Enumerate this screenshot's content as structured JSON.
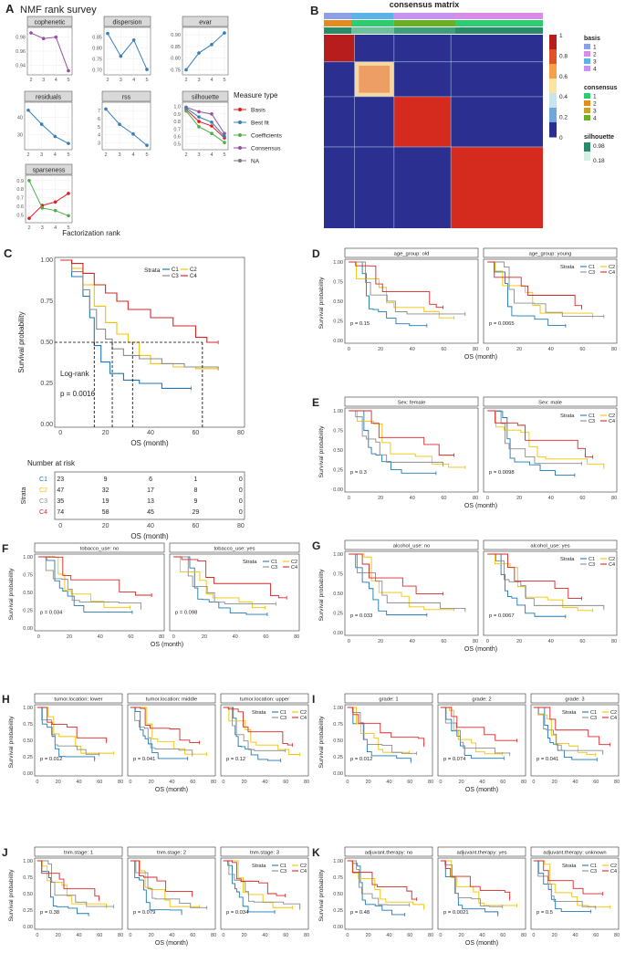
{
  "colors": {
    "C1": "#1f78b4",
    "C2": "#f2c200",
    "C3": "#8c8c8c",
    "C4": "#d62728",
    "basis": "#e41a1c",
    "bestfit": "#377eb8",
    "coefficients": "#4daf4a",
    "consensus": "#984ea3",
    "na": "#777777"
  },
  "panelA": {
    "letter": "A",
    "title": "NMF rank survey",
    "xlabel": "Factorization rank",
    "ranks": [
      "2",
      "3",
      "4",
      "5"
    ],
    "facets": [
      {
        "name": "cophenetic",
        "yticks": [
          "0.98",
          "0.96",
          "0.94"
        ],
        "ylim": [
          0.93,
          0.99
        ],
        "lines": [
          {
            "measure": "consensus",
            "values": [
              0.986,
              0.978,
              0.98,
              0.932
            ]
          }
        ]
      },
      {
        "name": "dispersion",
        "yticks": [
          "0.85",
          "0.80",
          "0.75",
          "0.70"
        ],
        "ylim": [
          0.69,
          0.88
        ],
        "lines": [
          {
            "measure": "bestfit",
            "values": [
              0.865,
              0.762,
              0.835,
              0.702
            ]
          }
        ]
      },
      {
        "name": "evar",
        "yticks": [
          "0.90",
          "0.85",
          "0.80",
          "0.75"
        ],
        "ylim": [
          0.74,
          0.92
        ],
        "lines": [
          {
            "measure": "bestfit",
            "values": [
              0.75,
              0.822,
              0.858,
              0.908
            ]
          }
        ]
      },
      {
        "name": "residuals",
        "yticks": [
          "40",
          "30"
        ],
        "ylim": [
          23,
          47
        ],
        "lines": [
          {
            "measure": "bestfit",
            "values": [
              44,
              36,
              29,
              25
            ]
          }
        ]
      },
      {
        "name": "rss",
        "yticks": [
          "7",
          "6",
          "5",
          "4",
          "3"
        ],
        "ylim": [
          2.5,
          7.7
        ],
        "lines": [
          {
            "measure": "bestfit",
            "values": [
              7.2,
              5.3,
              4.1,
              2.7
            ]
          }
        ]
      },
      {
        "name": "silhouette",
        "yticks": [
          "1.0",
          "0.9",
          "0.8",
          "0.7",
          "0.6",
          "0.5"
        ],
        "ylim": [
          0.46,
          1.02
        ],
        "lines": [
          {
            "measure": "consensus",
            "values": [
              0.99,
              0.93,
              0.9,
              0.64
            ]
          },
          {
            "measure": "basis",
            "values": [
              0.96,
              0.8,
              0.74,
              0.58
            ]
          },
          {
            "measure": "coefficients",
            "values": [
              0.94,
              0.73,
              0.64,
              0.52
            ]
          },
          {
            "measure": "bestfit",
            "values": [
              0.98,
              0.86,
              0.79,
              0.6
            ]
          }
        ]
      },
      {
        "name": "sparseness",
        "yticks": [
          "0.9",
          "0.8",
          "0.7",
          "0.6",
          "0.5"
        ],
        "ylim": [
          0.44,
          0.93
        ],
        "lines": [
          {
            "measure": "basis",
            "values": [
              0.46,
              0.61,
              0.65,
              0.75
            ]
          },
          {
            "measure": "coefficients",
            "values": [
              0.9,
              0.58,
              0.55,
              0.49
            ]
          }
        ]
      }
    ],
    "legend": {
      "title": "Measure type",
      "items": [
        {
          "label": "Basis",
          "measure": "basis"
        },
        {
          "label": "Best fit",
          "measure": "bestfit"
        },
        {
          "label": "Coefficients",
          "measure": "coefficients"
        },
        {
          "label": "Consensus",
          "measure": "consensus"
        },
        {
          "label": "NA",
          "measure": "na"
        }
      ]
    }
  },
  "panelB": {
    "letter": "B",
    "title": "consensus matrix",
    "colorbar_ticks": [
      "1",
      "0.8",
      "0.6",
      "0.4",
      "0.2",
      "0"
    ],
    "basis": {
      "title": "basis",
      "items": [
        {
          "label": "1",
          "color": "#8da0e6"
        },
        {
          "label": "2",
          "color": "#d98ee6"
        },
        {
          "label": "3",
          "color": "#5ab4e6"
        },
        {
          "label": "4",
          "color": "#c792f0"
        }
      ]
    },
    "consensus": {
      "title": "consensus",
      "items": [
        {
          "label": "1",
          "color": "#2ecc71"
        },
        {
          "label": "2",
          "color": "#e08c1e"
        },
        {
          "label": "3",
          "color": "#c9a227"
        },
        {
          "label": "4",
          "color": "#6ab023"
        }
      ]
    },
    "silhouette": {
      "title": "silhouette",
      "max": "0.98",
      "min": "0.18"
    }
  },
  "panelC": {
    "letter": "C",
    "ylabel": "Survival probability",
    "xlabel": "OS (month)",
    "yticks": [
      "1.00",
      "0.75",
      "0.50",
      "0.25",
      "0.00"
    ],
    "xticks": [
      "0",
      "20",
      "40",
      "60",
      "80"
    ],
    "logrank": "Log-rank",
    "pvalue": "p = 0.0016",
    "legend_title": "Strata",
    "strata": [
      "C1",
      "C2",
      "C3",
      "C4"
    ],
    "medians": {
      "C1": 15,
      "C2": 32,
      "C3": 23,
      "C4": 63
    },
    "risk_title": "Number at risk",
    "risk_label": "Strata",
    "risk_table": {
      "C1": [
        "23",
        "9",
        "6",
        "1",
        "0"
      ],
      "C2": [
        "47",
        "32",
        "17",
        "8",
        "0"
      ],
      "C3": [
        "35",
        "19",
        "13",
        "9",
        "0"
      ],
      "C4": [
        "74",
        "58",
        "45",
        "29",
        "0"
      ]
    }
  },
  "small": {
    "ylabel": "Survival probability",
    "xlabel": "OS (month)",
    "legend_title": "Strata",
    "yticks": [
      "1.00",
      "0.75",
      "0.50",
      "0.25",
      "0.00"
    ]
  },
  "panels": [
    {
      "letter": "D",
      "facets": [
        {
          "label": "age_group: old",
          "p": "p = 0.15"
        },
        {
          "label": "age_group: young",
          "p": "p = 0.0065"
        }
      ]
    },
    {
      "letter": "E",
      "facets": [
        {
          "label": "Sex: female",
          "p": "p = 0.3"
        },
        {
          "label": "Sex: male",
          "p": "p = 0.0098"
        }
      ]
    },
    {
      "letter": "F",
      "facets": [
        {
          "label": "tobacco_use: no",
          "p": "p = 0.034"
        },
        {
          "label": "tobacco_use: yes",
          "p": "p = 0.098"
        }
      ]
    },
    {
      "letter": "G",
      "facets": [
        {
          "label": "alcohol_use: no",
          "p": "p = 0.033"
        },
        {
          "label": "alcohol_use: yes",
          "p": "p = 0.0067"
        }
      ]
    },
    {
      "letter": "H",
      "facets": [
        {
          "label": "tumor.location: lower",
          "p": "p = 0.012"
        },
        {
          "label": "tumor.location: middle",
          "p": "p = 0.041"
        },
        {
          "label": "tumor.location: upper",
          "p": "p = 0.12"
        }
      ]
    },
    {
      "letter": "I",
      "facets": [
        {
          "label": "grade: 1",
          "p": "p = 0.012"
        },
        {
          "label": "grade: 2",
          "p": "p = 0.074"
        },
        {
          "label": "grade: 3",
          "p": "p = 0.041"
        }
      ]
    },
    {
      "letter": "J",
      "facets": [
        {
          "label": "tnm.stage: 1",
          "p": "p = 0.38"
        },
        {
          "label": "tnm.stage: 2",
          "p": "p = 0.079"
        },
        {
          "label": "tnm.stage: 3",
          "p": "p = 0.034"
        }
      ]
    },
    {
      "letter": "K",
      "facets": [
        {
          "label": "adjuvant.therapy: no",
          "p": "p = 0.48"
        },
        {
          "label": "adjuvant.therapy: yes",
          "p": "p = 0.0021"
        },
        {
          "label": "adjuvant.therapy: unknown",
          "p": "p = 0.5"
        }
      ]
    }
  ],
  "chart_data": [
    {
      "type": "line",
      "title": "NMF rank survey",
      "xlabel": "Factorization rank",
      "x": [
        2,
        3,
        4,
        5
      ],
      "series": [
        {
          "name": "cophenetic",
          "values": [
            0.986,
            0.978,
            0.98,
            0.932
          ]
        },
        {
          "name": "dispersion",
          "values": [
            0.865,
            0.762,
            0.835,
            0.702
          ]
        },
        {
          "name": "evar",
          "values": [
            0.75,
            0.822,
            0.858,
            0.908
          ]
        },
        {
          "name": "residuals",
          "values": [
            44,
            36,
            29,
            25
          ]
        },
        {
          "name": "rss",
          "values": [
            7.2,
            5.3,
            4.1,
            2.7
          ]
        }
      ]
    },
    {
      "type": "line",
      "xlabel": "OS (month)",
      "ylabel": "Survival probability",
      "ylim": [
        0,
        1
      ],
      "series": [
        {
          "name": "C1",
          "x": [
            0,
            5,
            10,
            13,
            15,
            18,
            22,
            28,
            35,
            45,
            55,
            58
          ],
          "values": [
            1,
            0.9,
            0.78,
            0.65,
            0.48,
            0.38,
            0.31,
            0.27,
            0.25,
            0.22,
            0.22,
            0.22
          ]
        },
        {
          "name": "C2",
          "x": [
            0,
            5,
            10,
            15,
            20,
            25,
            30,
            35,
            40,
            50,
            60,
            70
          ],
          "values": [
            1,
            0.95,
            0.85,
            0.72,
            0.62,
            0.55,
            0.5,
            0.42,
            0.37,
            0.35,
            0.34,
            0.34
          ]
        },
        {
          "name": "C3",
          "x": [
            0,
            5,
            10,
            13,
            16,
            20,
            23,
            28,
            35,
            45,
            55,
            65,
            70
          ],
          "values": [
            1,
            0.93,
            0.82,
            0.7,
            0.58,
            0.52,
            0.46,
            0.42,
            0.4,
            0.37,
            0.35,
            0.34,
            0.34
          ]
        },
        {
          "name": "C4",
          "x": [
            0,
            5,
            10,
            15,
            20,
            25,
            30,
            40,
            50,
            60,
            65,
            70
          ],
          "values": [
            1,
            0.98,
            0.92,
            0.85,
            0.8,
            0.75,
            0.7,
            0.65,
            0.6,
            0.53,
            0.5,
            0.5
          ]
        }
      ]
    }
  ]
}
